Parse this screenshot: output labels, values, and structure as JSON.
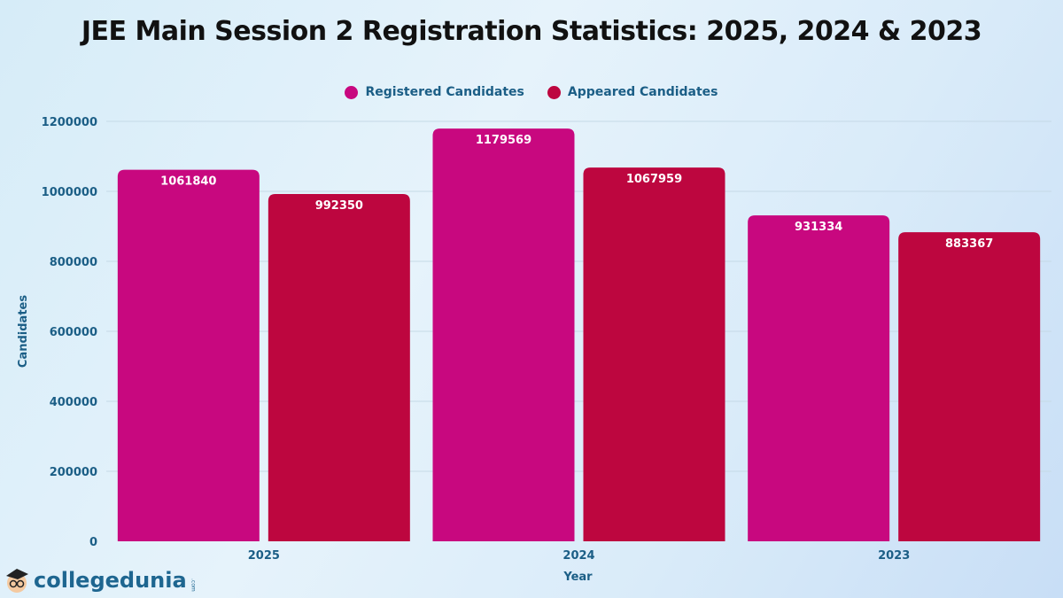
{
  "chart_data": {
    "type": "bar",
    "title": "JEE Main Session 2 Registration Statistics: 2025, 2024 & 2023",
    "xlabel": "Year",
    "ylabel": "Candidates",
    "categories": [
      "2025",
      "2024",
      "2023"
    ],
    "series": [
      {
        "name": "Registered Candidates",
        "values": [
          1061840,
          1179569,
          931334
        ],
        "color": "#C8087F"
      },
      {
        "name": "Appeared Candidates",
        "values": [
          992350,
          1067959,
          883367
        ],
        "color": "#BD063F"
      }
    ],
    "ylim": [
      0,
      1200000
    ],
    "yticks": [
      0,
      200000,
      400000,
      600000,
      800000,
      1000000,
      1200000
    ],
    "grid": true,
    "legend": "top-center",
    "data_labels": true
  },
  "brand": {
    "logo_text": "collegedunia",
    "logo_suffix": ".com"
  }
}
